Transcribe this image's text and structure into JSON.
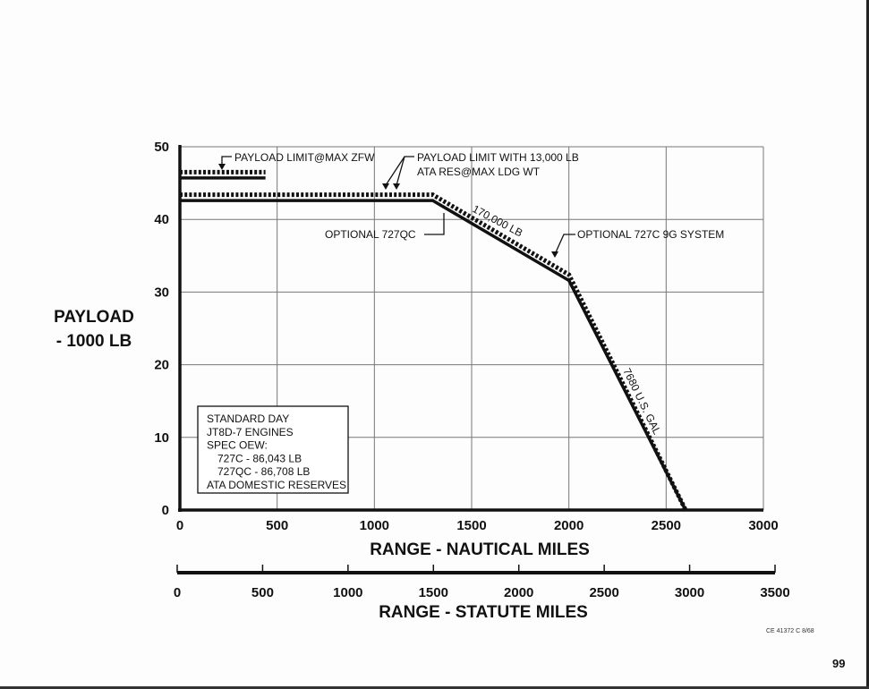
{
  "chart_data": {
    "type": "line",
    "title": "",
    "xlabel": "RANGE - NAUTICAL MILES",
    "ylabel_lines": [
      "PAYLOAD",
      "- 1000 LB"
    ],
    "xlim": [
      0,
      3000
    ],
    "ylim": [
      0,
      50
    ],
    "x_ticks": [
      0,
      500,
      1000,
      1500,
      2000,
      2500,
      3000
    ],
    "y_ticks": [
      0,
      10,
      20,
      30,
      40,
      50
    ],
    "grid": true,
    "secondary_axis": {
      "label": "RANGE - STATUTE MILES",
      "lim": [
        0,
        3500
      ],
      "ticks": [
        0,
        500,
        1000,
        1500,
        2000,
        2500,
        3000,
        3500
      ]
    },
    "series": [
      {
        "name": "OPTIONAL 727QC",
        "style": "solid",
        "x": [
          0,
          1300,
          2000,
          2600
        ],
        "y": [
          42.6,
          42.6,
          31.6,
          0
        ]
      },
      {
        "name": "OPTIONAL 727C 9G SYSTEM",
        "style": "dashed",
        "x": [
          0,
          1300,
          2000,
          2600
        ],
        "y": [
          43.4,
          43.4,
          32.4,
          0
        ]
      }
    ],
    "payload_limit_max_zfw": [
      {
        "style": "dashed",
        "x": [
          0,
          440
        ],
        "y": [
          46.5,
          46.5
        ]
      },
      {
        "style": "solid",
        "x": [
          0,
          440
        ],
        "y": [
          45.7,
          45.7
        ]
      }
    ],
    "annotations": {
      "zfw": "PAYLOAD LIMIT@MAX ZFW",
      "ldg_line1": "PAYLOAD LIMIT WITH 13,000 LB",
      "ldg_line2": "ATA RES@MAX LDG WT",
      "qc": "OPTIONAL 727QC",
      "c9g": "OPTIONAL 727C 9G SYSTEM",
      "weight": "170,000 LB",
      "fuel": "7680 U.S. GAL"
    },
    "legend_box": [
      "STANDARD DAY",
      "JT8D-7 ENGINES",
      "SPEC OEW:",
      "727C - 86,043  LB",
      "727QC - 86,708  LB",
      "ATA DOMESTIC RESERVES"
    ]
  },
  "footer": {
    "code": "CE 41372 C 8/68",
    "page_number": "99"
  }
}
